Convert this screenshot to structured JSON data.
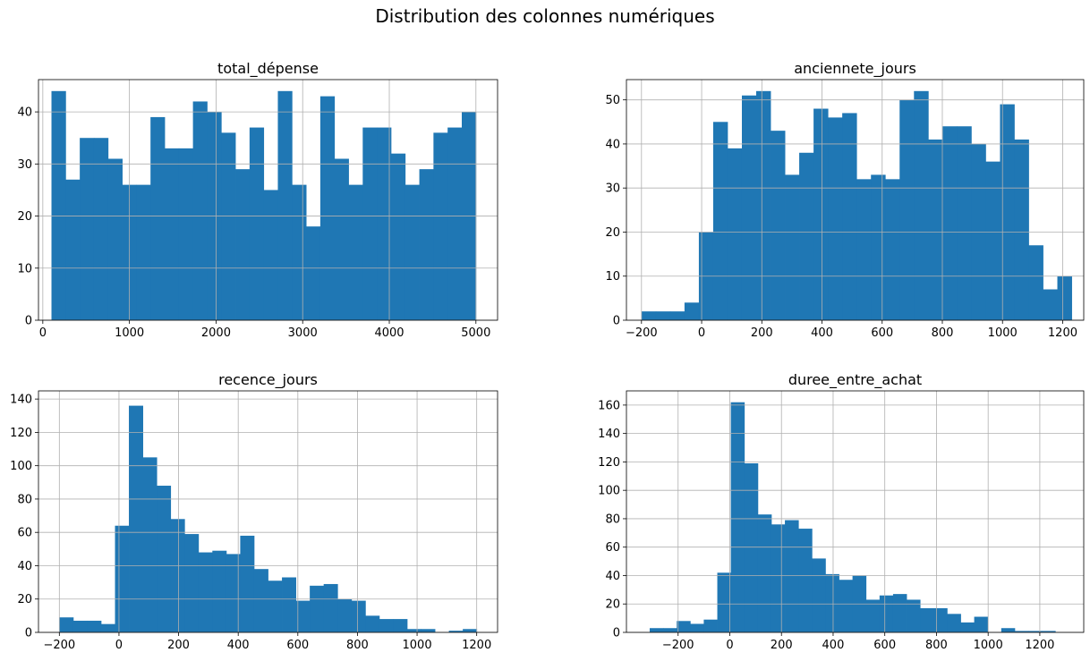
{
  "figure": {
    "title": "Distribution des colonnes numériques"
  },
  "colors": {
    "bar": "#1f77b4",
    "grid": "#b0b0b0",
    "axis": "#000000"
  },
  "chart_data": [
    {
      "type": "bar",
      "title": "total_dépense",
      "grid": true,
      "xlim": [
        -50,
        5250
      ],
      "ylim": [
        0,
        46.2
      ],
      "xticks": [
        0,
        1000,
        2000,
        3000,
        4000,
        5000
      ],
      "xtick_labels": [
        "0",
        "1000",
        "2000",
        "3000",
        "4000",
        "5000"
      ],
      "yticks": [
        0,
        10,
        20,
        30,
        40
      ],
      "ytick_labels": [
        "0",
        "10",
        "20",
        "30",
        "40"
      ],
      "bin_edges": [
        100,
        263.3,
        426.7,
        590,
        753.3,
        916.7,
        1080,
        1243.3,
        1406.7,
        1570,
        1733.3,
        1896.7,
        2060,
        2223.3,
        2386.7,
        2550,
        2713.3,
        2876.7,
        3040,
        3203.3,
        3366.7,
        3530,
        3693.3,
        3856.7,
        4020,
        4183.3,
        4346.7,
        4510,
        4673.3,
        4836.7,
        5000
      ],
      "counts": [
        44,
        27,
        35,
        35,
        31,
        26,
        26,
        39,
        33,
        33,
        42,
        40,
        36,
        29,
        37,
        25,
        44,
        26,
        18,
        43,
        31,
        26,
        37,
        37,
        32,
        26,
        29,
        36,
        37,
        40
      ]
    },
    {
      "type": "bar",
      "title": "anciennete_jours",
      "grid": true,
      "xlim": [
        -250,
        1270
      ],
      "ylim": [
        0,
        54.6
      ],
      "xticks": [
        -200,
        0,
        200,
        400,
        600,
        800,
        1000,
        1200
      ],
      "xtick_labels": [
        "−200",
        "0",
        "200",
        "400",
        "600",
        "800",
        "1000",
        "1200"
      ],
      "yticks": [
        0,
        10,
        20,
        30,
        40,
        50
      ],
      "ytick_labels": [
        "0",
        "10",
        "20",
        "30",
        "40",
        "50"
      ],
      "bin_edges": [
        -200,
        -152.3,
        -104.7,
        -57,
        -9.3,
        38.3,
        86,
        133.7,
        181.3,
        229,
        276.7,
        324.3,
        372,
        419.7,
        467.3,
        515,
        562.7,
        610.3,
        658,
        705.7,
        753.3,
        801,
        848.7,
        896.3,
        944,
        991.7,
        1039.3,
        1087,
        1134.7,
        1182.3,
        1230
      ],
      "counts": [
        2,
        2,
        2,
        4,
        20,
        45,
        39,
        51,
        52,
        43,
        33,
        38,
        48,
        46,
        47,
        32,
        33,
        32,
        50,
        52,
        41,
        44,
        44,
        40,
        36,
        49,
        41,
        17,
        7,
        10
      ]
    },
    {
      "type": "bar",
      "title": "recence_jours",
      "grid": true,
      "xlim": [
        -270,
        1270
      ],
      "ylim": [
        0,
        144.9
      ],
      "xticks": [
        -200,
        0,
        200,
        400,
        600,
        800,
        1000,
        1200
      ],
      "xtick_labels": [
        "−200",
        "0",
        "200",
        "400",
        "600",
        "800",
        "1000",
        "1200"
      ],
      "yticks": [
        0,
        20,
        40,
        60,
        80,
        100,
        120,
        140
      ],
      "ytick_labels": [
        "0",
        "20",
        "40",
        "60",
        "80",
        "100",
        "120",
        "140"
      ],
      "bin_edges": [
        -200,
        -153.3,
        -106.7,
        -60,
        -13.3,
        33.3,
        80,
        126.7,
        173.3,
        220,
        266.7,
        313.3,
        360,
        406.7,
        453.3,
        500,
        546.7,
        593.3,
        640,
        686.7,
        733.3,
        780,
        826.7,
        873.3,
        920,
        966.7,
        1013.3,
        1060,
        1106.7,
        1153.3,
        1200
      ],
      "counts": [
        9,
        7,
        7,
        5,
        64,
        136,
        105,
        88,
        68,
        59,
        48,
        49,
        47,
        58,
        38,
        31,
        33,
        19,
        28,
        29,
        20,
        19,
        10,
        8,
        8,
        2,
        2,
        0,
        1,
        2
      ]
    },
    {
      "type": "bar",
      "title": "duree_entre_achat",
      "grid": true,
      "xlim": [
        -400,
        1370
      ],
      "ylim": [
        0,
        170
      ],
      "xticks": [
        -200,
        0,
        200,
        400,
        600,
        800,
        1000,
        1200
      ],
      "xtick_labels": [
        "−200",
        "0",
        "200",
        "400",
        "600",
        "800",
        "1000",
        "1200"
      ],
      "yticks": [
        0,
        20,
        40,
        60,
        80,
        100,
        120,
        140,
        160
      ],
      "ytick_labels": [
        "0",
        "20",
        "40",
        "60",
        "80",
        "100",
        "120",
        "140",
        "160"
      ],
      "bin_edges": [
        -310,
        -257.7,
        -205.3,
        -153,
        -100.7,
        -48.3,
        4,
        56.3,
        108.7,
        161,
        213.3,
        265.7,
        318,
        370.3,
        422.7,
        475,
        527.3,
        579.7,
        632,
        684.3,
        736.7,
        789,
        841.3,
        893.7,
        946,
        998.3,
        1050.7,
        1103,
        1155.3,
        1207.7,
        1260
      ],
      "counts": [
        3,
        3,
        8,
        6,
        9,
        42,
        162,
        119,
        83,
        76,
        79,
        73,
        52,
        41,
        37,
        40,
        23,
        26,
        27,
        23,
        17,
        17,
        13,
        7,
        11,
        0,
        3,
        1,
        1,
        1
      ]
    }
  ]
}
